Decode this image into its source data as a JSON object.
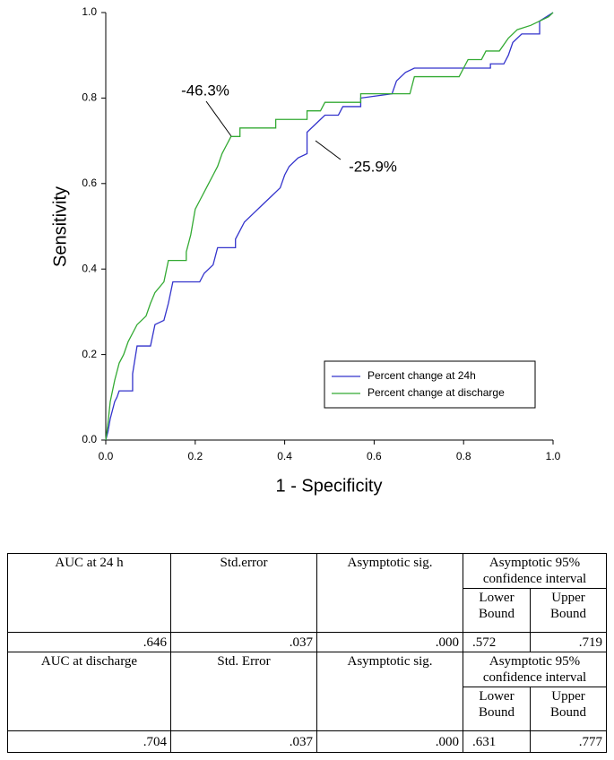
{
  "chart_data": {
    "type": "line",
    "xlabel": "1 - Specificity",
    "ylabel": "Sensitivity",
    "xlim": [
      0,
      1
    ],
    "ylim": [
      0,
      1
    ],
    "xticks": [
      {
        "value": 0,
        "label": "0.0"
      },
      {
        "value": 0.2,
        "label": "0.2"
      },
      {
        "value": 0.4,
        "label": "0.4"
      },
      {
        "value": 0.6,
        "label": "0.6"
      },
      {
        "value": 0.8,
        "label": "0.8"
      },
      {
        "value": 1,
        "label": "1.0"
      }
    ],
    "yticks": [
      {
        "value": 0,
        "label": "0.0"
      },
      {
        "value": 0.2,
        "label": "0.2"
      },
      {
        "value": 0.4,
        "label": "0.4"
      },
      {
        "value": 0.6,
        "label": "0.6"
      },
      {
        "value": 0.8,
        "label": "0.8"
      },
      {
        "value": 1,
        "label": "1.0"
      }
    ],
    "legend": "lower right",
    "series": [
      {
        "name": "Percent change at 24h",
        "color": "#3333cc",
        "x": [
          0,
          0.005,
          0.01,
          0.015,
          0.02,
          0.025,
          0.03,
          0.06,
          0.06,
          0.07,
          0.1,
          0.11,
          0.13,
          0.14,
          0.15,
          0.21,
          0.22,
          0.24,
          0.25,
          0.29,
          0.29,
          0.3,
          0.31,
          0.33,
          0.35,
          0.37,
          0.39,
          0.4,
          0.41,
          0.43,
          0.45,
          0.45,
          0.47,
          0.49,
          0.52,
          0.53,
          0.57,
          0.57,
          0.64,
          0.65,
          0.67,
          0.69,
          0.86,
          0.86,
          0.89,
          0.9,
          0.91,
          0.93,
          0.97,
          0.97,
          1
        ],
        "values": [
          0,
          0.02,
          0.05,
          0.07,
          0.09,
          0.1,
          0.115,
          0.115,
          0.155,
          0.22,
          0.22,
          0.27,
          0.28,
          0.32,
          0.37,
          0.37,
          0.39,
          0.41,
          0.45,
          0.45,
          0.47,
          0.49,
          0.51,
          0.53,
          0.55,
          0.57,
          0.59,
          0.62,
          0.64,
          0.66,
          0.67,
          0.72,
          0.74,
          0.76,
          0.76,
          0.78,
          0.78,
          0.8,
          0.81,
          0.84,
          0.86,
          0.87,
          0.87,
          0.88,
          0.88,
          0.9,
          0.93,
          0.95,
          0.95,
          0.98,
          1
        ]
      },
      {
        "name": "Percent change at discharge",
        "color": "#33aa33",
        "x": [
          0,
          0.005,
          0.01,
          0.02,
          0.03,
          0.04,
          0.05,
          0.06,
          0.07,
          0.09,
          0.1,
          0.11,
          0.13,
          0.14,
          0.18,
          0.18,
          0.19,
          0.2,
          0.21,
          0.23,
          0.24,
          0.25,
          0.26,
          0.27,
          0.28,
          0.3,
          0.3,
          0.38,
          0.38,
          0.45,
          0.45,
          0.48,
          0.49,
          0.57,
          0.57,
          0.68,
          0.69,
          0.79,
          0.8,
          0.81,
          0.84,
          0.85,
          0.88,
          0.9,
          0.92,
          0.95,
          0.99,
          1
        ],
        "values": [
          0,
          0.04,
          0.09,
          0.14,
          0.18,
          0.2,
          0.23,
          0.25,
          0.27,
          0.29,
          0.32,
          0.345,
          0.37,
          0.42,
          0.42,
          0.44,
          0.48,
          0.54,
          0.56,
          0.6,
          0.62,
          0.64,
          0.67,
          0.69,
          0.71,
          0.71,
          0.73,
          0.73,
          0.75,
          0.75,
          0.77,
          0.77,
          0.79,
          0.79,
          0.81,
          0.81,
          0.85,
          0.85,
          0.87,
          0.89,
          0.89,
          0.91,
          0.91,
          0.94,
          0.96,
          0.97,
          0.99,
          1
        ]
      }
    ],
    "annotations": [
      "-46.3%",
      "-25.9%"
    ]
  },
  "table": {
    "blocks": [
      {
        "headers": [
          "AUC at 24 h",
          "Std.error",
          "Asymptotic sig.",
          "Asymptotic 95% confidence interval",
          "Lower Bound",
          "Upper Bound"
        ],
        "values": [
          ".646",
          ".037",
          ".000",
          ".572",
          ".719"
        ]
      },
      {
        "headers": [
          "AUC at discharge",
          "Std. Error",
          "Asymptotic sig.",
          "Asymptotic 95% confidence interval",
          "Lower Bound",
          "Upper Bound"
        ],
        "values": [
          ".704",
          ".037",
          ".000",
          ".631",
          ".777"
        ]
      }
    ]
  }
}
